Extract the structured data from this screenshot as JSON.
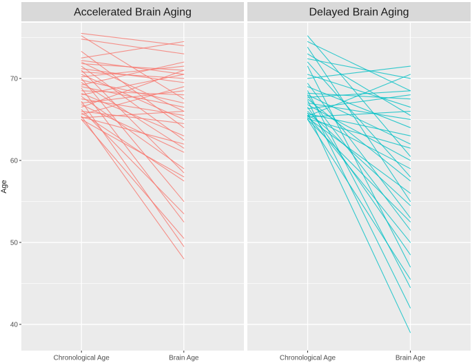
{
  "figure": {
    "background": "#FFFFFF",
    "panel_bg": "#EBEBEB",
    "strip_bg": "#D9D9D9",
    "grid_color": "#FFFFFF",
    "tick_color": "#333333",
    "tick_label_color": "#4D4D4D",
    "title_color": "#1A1A1A",
    "accent_red": "#F8766D",
    "accent_teal": "#00BFC4"
  },
  "chart_data": {
    "type": "line",
    "subtype": "slope-graph-faceted",
    "title": "",
    "xlabel": "",
    "ylabel": "Age",
    "x_categories": [
      "Chronological Age",
      "Brain Age"
    ],
    "y_ticks": [
      40,
      50,
      60,
      70
    ],
    "y_minor_ticks": [
      45,
      55,
      65,
      75
    ],
    "ylim": [
      36.8,
      76.8
    ],
    "grid": true,
    "legend_position": "none",
    "facets": [
      {
        "title": "Accelerated Brain Aging",
        "color": "#F8766D",
        "series_name": "accelerated",
        "pairs_format": [
          "chronological_age",
          "brain_age"
        ],
        "series": [
          [
            75.5,
            74.0
          ],
          [
            75.2,
            67.5
          ],
          [
            74.8,
            73.0
          ],
          [
            73.3,
            64.0
          ],
          [
            72.5,
            74.5
          ],
          [
            72.2,
            70.5
          ],
          [
            72.0,
            66.0
          ],
          [
            71.8,
            71.0
          ],
          [
            71.5,
            62.5
          ],
          [
            71.2,
            69.5
          ],
          [
            71.0,
            58.5
          ],
          [
            70.8,
            70.0
          ],
          [
            70.5,
            65.0
          ],
          [
            70.2,
            71.5
          ],
          [
            70.0,
            55.0
          ],
          [
            69.8,
            67.0
          ],
          [
            69.5,
            61.5
          ],
          [
            69.2,
            72.0
          ],
          [
            69.0,
            66.5
          ],
          [
            68.8,
            52.5
          ],
          [
            68.5,
            68.0
          ],
          [
            68.2,
            63.0
          ],
          [
            68.0,
            70.5
          ],
          [
            67.8,
            59.0
          ],
          [
            67.5,
            65.5
          ],
          [
            67.2,
            49.5
          ],
          [
            67.0,
            68.5
          ],
          [
            66.8,
            61.0
          ],
          [
            66.5,
            71.0
          ],
          [
            66.2,
            53.5
          ],
          [
            66.0,
            64.5
          ],
          [
            65.8,
            57.5
          ],
          [
            65.6,
            69.0
          ],
          [
            65.4,
            48.0
          ],
          [
            65.3,
            62.0
          ],
          [
            65.2,
            66.0
          ],
          [
            65.0,
            58.0
          ],
          [
            65.0,
            50.5
          ]
        ]
      },
      {
        "title": "Delayed Brain Aging",
        "color": "#00BFC4",
        "series_name": "delayed",
        "pairs_format": [
          "chronological_age",
          "brain_age"
        ],
        "series": [
          [
            75.2,
            60.5
          ],
          [
            74.5,
            68.5
          ],
          [
            73.8,
            55.0
          ],
          [
            73.0,
            65.5
          ],
          [
            72.4,
            70.0
          ],
          [
            72.0,
            58.0
          ],
          [
            71.5,
            47.0
          ],
          [
            70.5,
            66.5
          ],
          [
            70.0,
            71.5
          ],
          [
            69.4,
            53.0
          ],
          [
            69.0,
            64.0
          ],
          [
            68.5,
            44.5
          ],
          [
            68.2,
            67.5
          ],
          [
            68.0,
            62.0
          ],
          [
            67.9,
            51.5
          ],
          [
            67.7,
            68.5
          ],
          [
            67.5,
            57.5
          ],
          [
            67.3,
            42.0
          ],
          [
            67.0,
            65.0
          ],
          [
            66.8,
            60.0
          ],
          [
            66.5,
            48.5
          ],
          [
            66.3,
            68.0
          ],
          [
            66.0,
            54.5
          ],
          [
            65.8,
            39.0
          ],
          [
            65.7,
            63.0
          ],
          [
            65.5,
            59.0
          ],
          [
            65.5,
            50.0
          ],
          [
            65.3,
            66.0
          ],
          [
            65.2,
            56.0
          ],
          [
            65.1,
            61.5
          ],
          [
            65.0,
            45.5
          ],
          [
            65.0,
            52.5
          ],
          [
            65.4,
            70.5
          ]
        ]
      }
    ]
  }
}
